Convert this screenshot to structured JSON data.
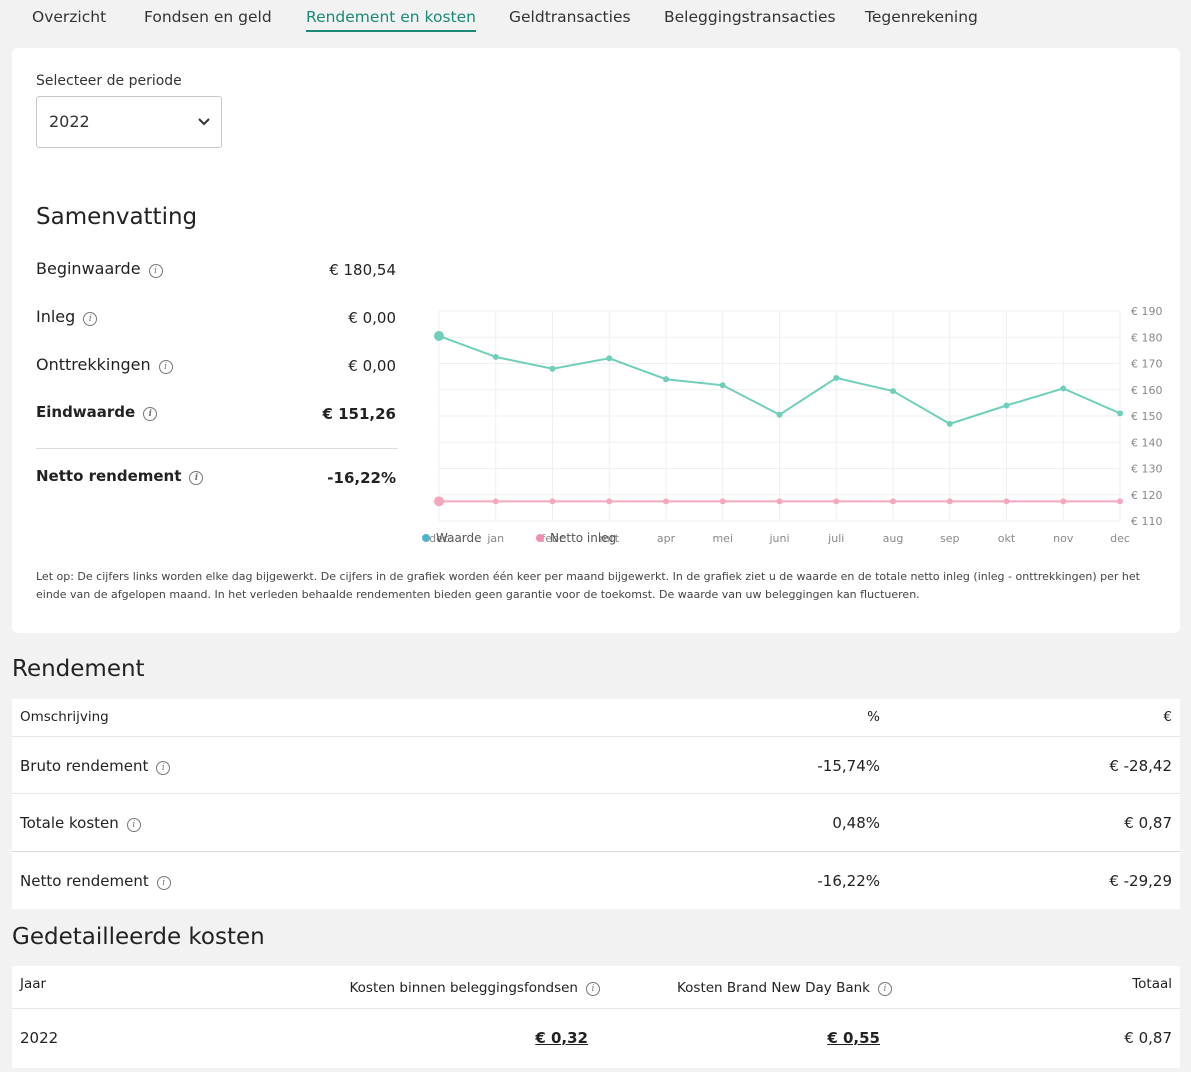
{
  "tabs": [
    "Overzicht",
    "Fondsen en geld",
    "Rendement en kosten",
    "Geldtransacties",
    "Beleggingstransacties",
    "Tegenrekening"
  ],
  "active_tab": "Rendement en kosten",
  "period": {
    "label": "Selecteer de periode",
    "selected": "2022"
  },
  "summary": {
    "title": "Samenvatting",
    "rows": [
      {
        "label": "Beginwaarde",
        "value": "€ 180,54"
      },
      {
        "label": "Inleg",
        "value": "€ 0,00"
      },
      {
        "label": "Onttrekkingen",
        "value": "€ 0,00"
      },
      {
        "label": "Eindwaarde",
        "value": "€ 151,26"
      },
      {
        "label": "Netto rendement",
        "value": "-16,22%"
      }
    ]
  },
  "chart_data": {
    "type": "line",
    "categories": [
      "dec",
      "jan",
      "febr",
      "mrt",
      "apr",
      "mei",
      "juni",
      "juli",
      "aug",
      "sep",
      "okt",
      "nov",
      "dec"
    ],
    "y_ticks": [
      "€ 190",
      "€ 180",
      "€ 170",
      "€ 160",
      "€ 150",
      "€ 140",
      "€ 130",
      "€ 120",
      "€ 110"
    ],
    "ylim": [
      110,
      190
    ],
    "series": [
      {
        "name": "Waarde",
        "color": "#6fcfba",
        "values": [
          180.5,
          172.5,
          168,
          172,
          164,
          161.7,
          150.5,
          164.5,
          159.5,
          147,
          154,
          160.5,
          151
        ]
      },
      {
        "name": "Netto inleg",
        "color": "#f4a7bd",
        "values": [
          117.5,
          117.5,
          117.5,
          117.5,
          117.5,
          117.5,
          117.5,
          117.5,
          117.5,
          117.5,
          117.5,
          117.5,
          117.5
        ]
      }
    ],
    "legend": [
      {
        "name": "Waarde",
        "color": "#4fb3c8"
      },
      {
        "name": "Netto inleg",
        "color": "#f08fb0"
      }
    ],
    "grid": true,
    "legend_position": "bottom-left"
  },
  "note": "Let op: De cijfers links worden elke dag bijgewerkt. De cijfers in de grafiek worden één keer per maand bijgewerkt. In de grafiek ziet u de waarde en de totale netto inleg (inleg - onttrekkingen) per het einde van de afgelopen maand. In het verleden behaalde rendementen bieden geen garantie voor de toekomst. De waarde van uw beleggingen kan fluctueren.",
  "rendement": {
    "title": "Rendement",
    "headers": {
      "desc": "Omschrijving",
      "pct": "%",
      "eur": "€"
    },
    "rows": [
      {
        "label": "Bruto rendement",
        "pct": "-15,74%",
        "eur": "€ -28,42"
      },
      {
        "label": "Totale kosten",
        "pct": "0,48%",
        "eur": "€ 0,87"
      },
      {
        "label": "Netto rendement",
        "pct": "-16,22%",
        "eur": "€ -29,29"
      }
    ]
  },
  "kosten": {
    "title": "Gedetailleerde kosten",
    "headers": {
      "jaar": "Jaar",
      "fondsen": "Kosten binnen beleggingsfondsen",
      "bank": "Kosten Brand New Day Bank",
      "totaal": "Totaal"
    },
    "rows": [
      {
        "jaar": "2022",
        "fondsen": "€ 0,32",
        "bank": "€ 0,55",
        "totaal": "€ 0,87"
      }
    ]
  }
}
